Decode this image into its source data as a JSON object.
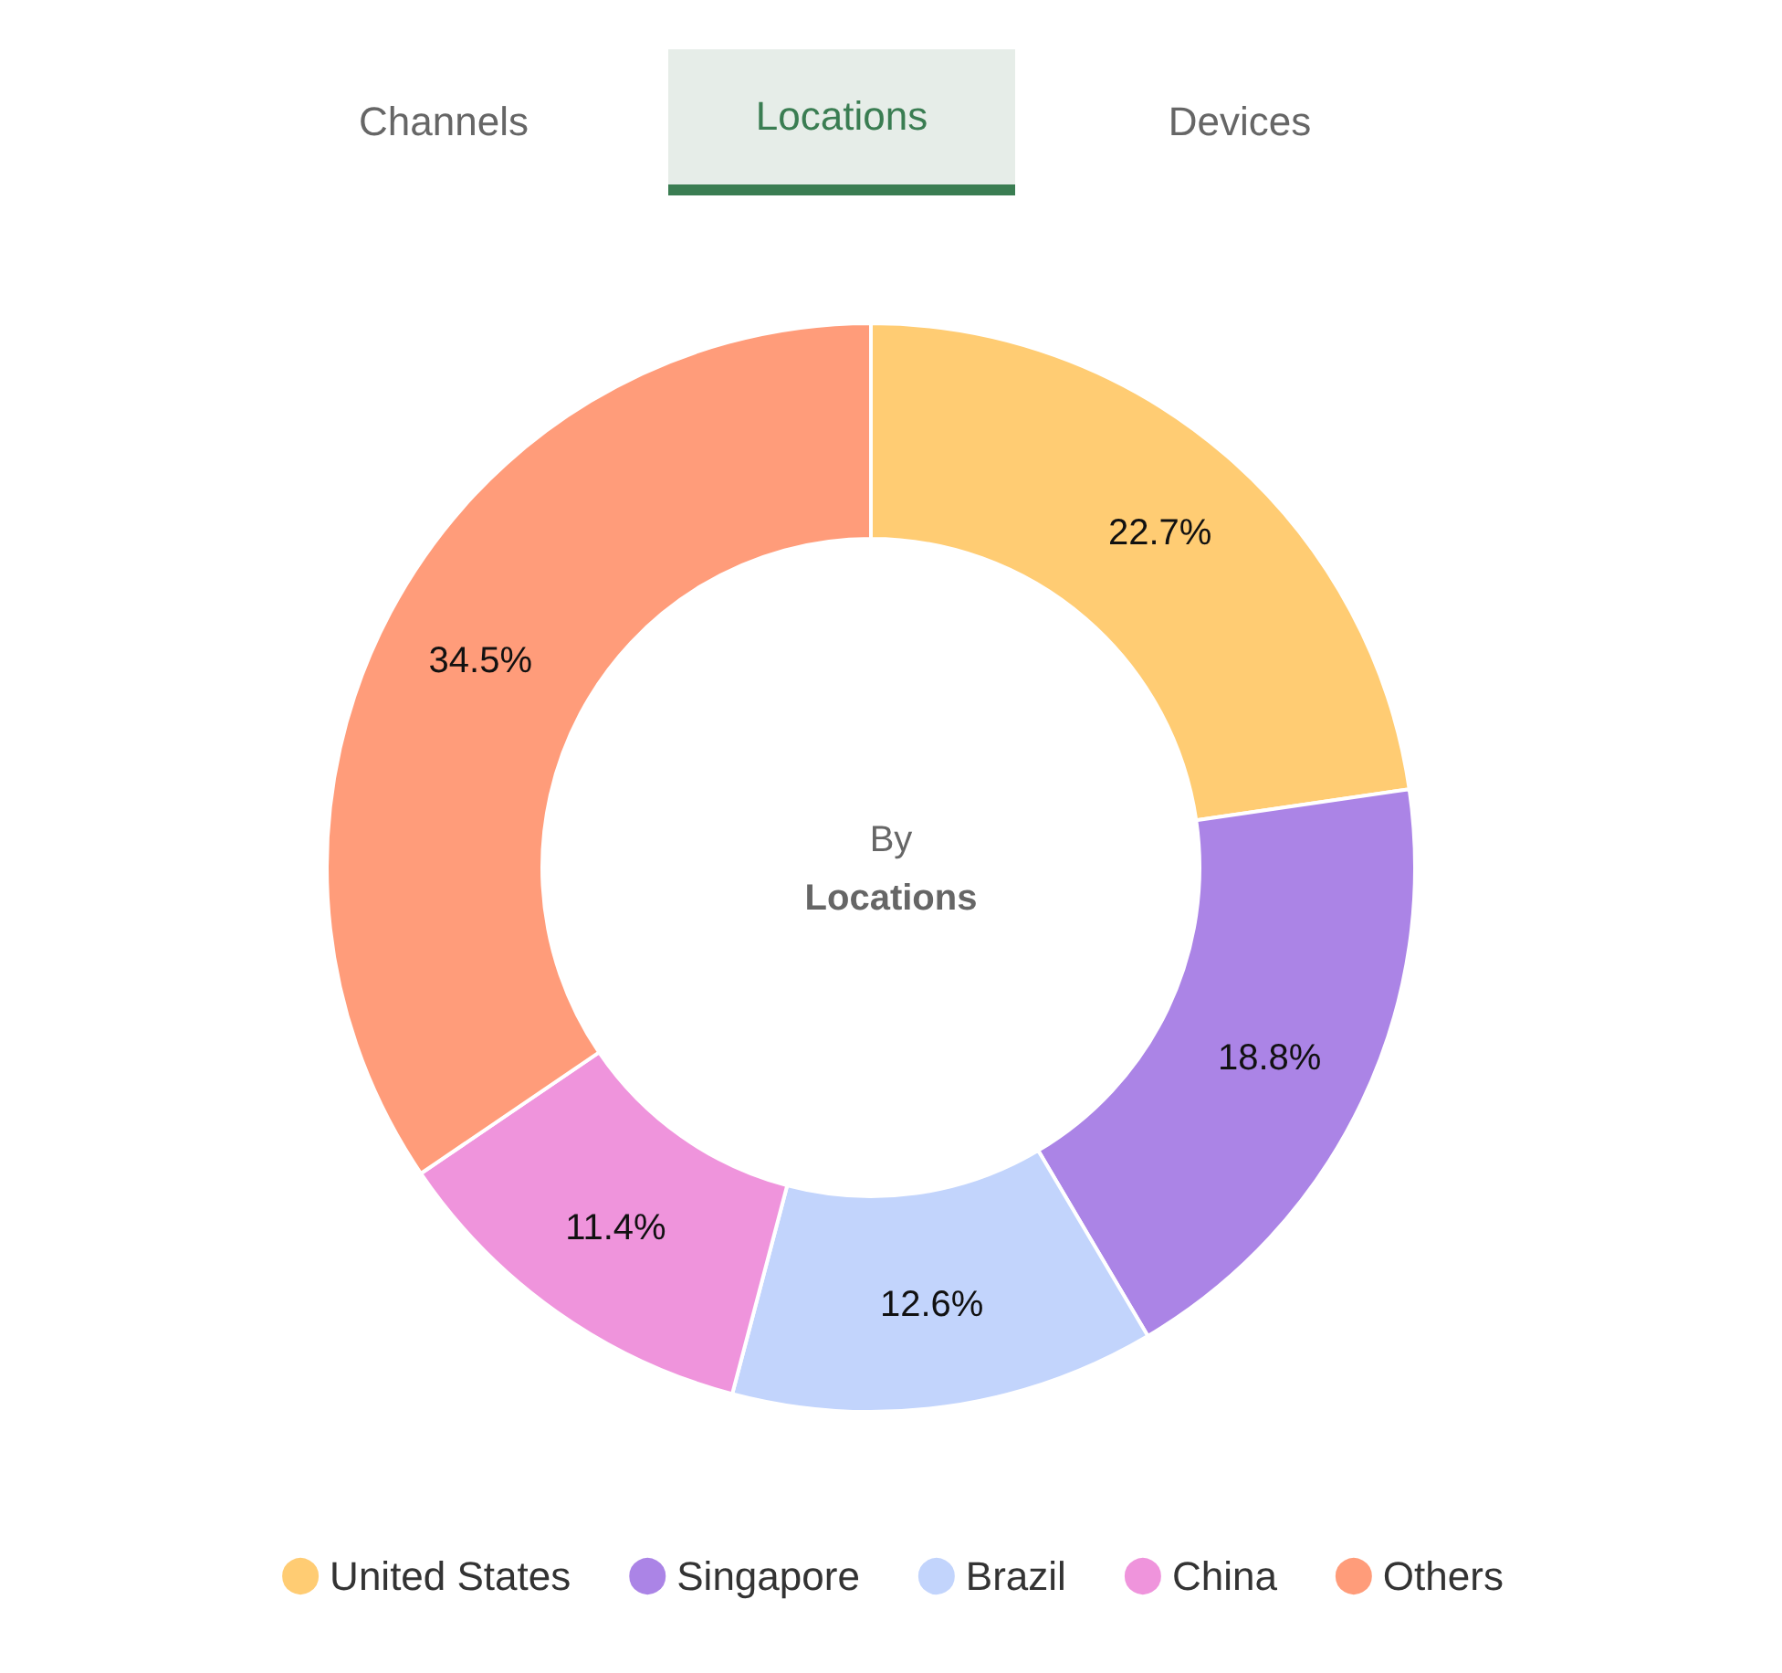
{
  "chart_data": {
    "type": "donut",
    "title": "By",
    "subtitle": "Locations",
    "annotations": [
      "Channels",
      "Locations",
      "Devices"
    ],
    "categories": [
      "United States",
      "Singapore",
      "Brazil",
      "China",
      "Others"
    ],
    "values": [
      22.7,
      18.8,
      12.6,
      11.4,
      34.5
    ],
    "colors": [
      "#ffcc73",
      "#ab84e6",
      "#c2d4fc",
      "#ef94dc",
      "#ff9c7a"
    ],
    "value_labels": [
      "22.7%",
      "18.8%",
      "12.6%",
      "11.4%",
      "34.5%"
    ],
    "legend": "bottom"
  }
}
